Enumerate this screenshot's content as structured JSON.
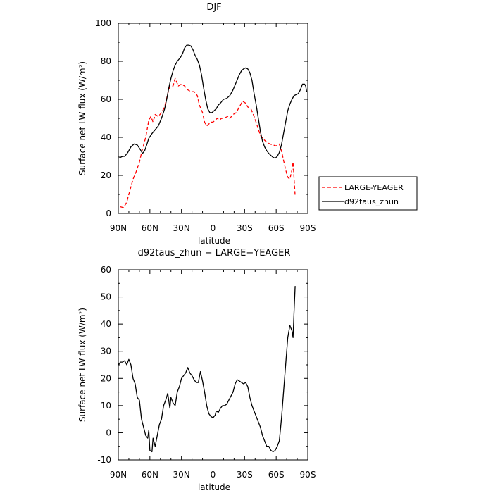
{
  "chart_data": [
    {
      "type": "line",
      "title": "DJF",
      "xlabel": "latitude",
      "ylabel": "Surface net LW flux (W/m²)",
      "xlim": [
        90,
        -90
      ],
      "ylim": [
        0,
        100
      ],
      "x_ticks": [
        "90N",
        "60N",
        "30N",
        "0",
        "30S",
        "60S",
        "90S"
      ],
      "y_ticks": [
        "0",
        "20",
        "40",
        "60",
        "80",
        "100"
      ],
      "legend_position": "right",
      "series": [
        {
          "name": "LARGE-YEAGER",
          "color": "#ff0000",
          "dash": "dashed",
          "points": [
            [
              88,
              3.5
            ],
            [
              85,
              3.0
            ],
            [
              82,
              6.0
            ],
            [
              79,
              12.0
            ],
            [
              76,
              18.0
            ],
            [
              73,
              22.0
            ],
            [
              70,
              27.0
            ],
            [
              67,
              34.0
            ],
            [
              64,
              40.0
            ],
            [
              61,
              49.0
            ],
            [
              59,
              51.0
            ],
            [
              57,
              48.0
            ],
            [
              55,
              52.0
            ],
            [
              52,
              51.0
            ],
            [
              49,
              53.0
            ],
            [
              46,
              56.0
            ],
            [
              43,
              63.0
            ],
            [
              41,
              67.0
            ],
            [
              38,
              67.0
            ],
            [
              36,
              71.0
            ],
            [
              33,
              67.0
            ],
            [
              30,
              68.0
            ],
            [
              27,
              67.0
            ],
            [
              24,
              65.0
            ],
            [
              21,
              64.0
            ],
            [
              18,
              64.0
            ],
            [
              15,
              62.0
            ],
            [
              13,
              57.0
            ],
            [
              10,
              53.0
            ],
            [
              8,
              48.0
            ],
            [
              6,
              46.0
            ],
            [
              4,
              47.0
            ],
            [
              2,
              48.0
            ],
            [
              0,
              48.0
            ],
            [
              -2,
              49.0
            ],
            [
              -4,
              50.0
            ],
            [
              -6,
              49.0
            ],
            [
              -8,
              50.0
            ],
            [
              -10,
              50.0
            ],
            [
              -12,
              50.5
            ],
            [
              -14,
              51.0
            ],
            [
              -16,
              50.0
            ],
            [
              -19,
              52.0
            ],
            [
              -22,
              53.0
            ],
            [
              -25,
              56.0
            ],
            [
              -28,
              59.0
            ],
            [
              -31,
              58.0
            ],
            [
              -33,
              56.0
            ],
            [
              -36,
              55.0
            ],
            [
              -39,
              51.0
            ],
            [
              -42,
              46.0
            ],
            [
              -45,
              41.0
            ],
            [
              -48,
              39.0
            ],
            [
              -51,
              37.5
            ],
            [
              -54,
              36.5
            ],
            [
              -57,
              36.0
            ],
            [
              -60,
              35.5
            ],
            [
              -63,
              36.5
            ],
            [
              -65,
              33.0
            ],
            [
              -67,
              28.0
            ],
            [
              -69,
              23.0
            ],
            [
              -71,
              19.0
            ],
            [
              -73,
              18.0
            ],
            [
              -75,
              23.0
            ],
            [
              -76,
              27.0
            ],
            [
              -77,
              18.0
            ],
            [
              -78,
              9.0
            ]
          ]
        },
        {
          "name": "d92taus_zhun",
          "color": "#000000",
          "dash": "solid",
          "points": [
            [
              90,
              29.0
            ],
            [
              88,
              29.5
            ],
            [
              86,
              30.0
            ],
            [
              84,
              30.0
            ],
            [
              81,
              32.0
            ],
            [
              78,
              35.0
            ],
            [
              75,
              36.5
            ],
            [
              72,
              36.0
            ],
            [
              69,
              33.5
            ],
            [
              67,
              31.5
            ],
            [
              65,
              33.0
            ],
            [
              63,
              36.0
            ],
            [
              61,
              39.5
            ],
            [
              58,
              42.0
            ],
            [
              55,
              44.0
            ],
            [
              52,
              46.0
            ],
            [
              49,
              50.0
            ],
            [
              46,
              55.0
            ],
            [
              44,
              60.0
            ],
            [
              42,
              66.0
            ],
            [
              40,
              71.0
            ],
            [
              38,
              75.0
            ],
            [
              36,
              78.0
            ],
            [
              34,
              80.0
            ],
            [
              31,
              82.0
            ],
            [
              29,
              84.0
            ],
            [
              27,
              87.0
            ],
            [
              25,
              88.5
            ],
            [
              23,
              88.5
            ],
            [
              21,
              88.0
            ],
            [
              19,
              86.0
            ],
            [
              17,
              83.0
            ],
            [
              15,
              81.0
            ],
            [
              13,
              78.0
            ],
            [
              11,
              73.0
            ],
            [
              9,
              66.0
            ],
            [
              7,
              60.0
            ],
            [
              5,
              55.0
            ],
            [
              3,
              53.0
            ],
            [
              1,
              53.0
            ],
            [
              -1,
              54.0
            ],
            [
              -3,
              55.0
            ],
            [
              -5,
              57.0
            ],
            [
              -7,
              58.0
            ],
            [
              -10,
              60.0
            ],
            [
              -13,
              60.5
            ],
            [
              -16,
              62.0
            ],
            [
              -19,
              65.0
            ],
            [
              -22,
              69.0
            ],
            [
              -25,
              73.0
            ],
            [
              -27,
              75.0
            ],
            [
              -29,
              76.0
            ],
            [
              -31,
              76.5
            ],
            [
              -33,
              76.0
            ],
            [
              -35,
              74.0
            ],
            [
              -37,
              70.0
            ],
            [
              -39,
              63.0
            ],
            [
              -41,
              57.0
            ],
            [
              -43,
              50.0
            ],
            [
              -45,
              43.0
            ],
            [
              -47,
              38.0
            ],
            [
              -49,
              35.0
            ],
            [
              -51,
              33.0
            ],
            [
              -53,
              31.5
            ],
            [
              -55,
              30.5
            ],
            [
              -57,
              29.5
            ],
            [
              -59,
              29.0
            ],
            [
              -61,
              30.0
            ],
            [
              -63,
              32.0
            ],
            [
              -65,
              36.0
            ],
            [
              -67,
              42.0
            ],
            [
              -69,
              48.0
            ],
            [
              -71,
              54.0
            ],
            [
              -73,
              57.5
            ],
            [
              -75,
              60.0
            ],
            [
              -77,
              62.0
            ],
            [
              -79,
              62.5
            ],
            [
              -81,
              63.0
            ],
            [
              -83,
              65.0
            ],
            [
              -85,
              68.0
            ],
            [
              -87,
              68.0
            ],
            [
              -88,
              67.0
            ],
            [
              -89,
              64.0
            ]
          ]
        }
      ]
    },
    {
      "type": "line",
      "title": "d92taus_zhun − LARGE−YEAGER",
      "xlabel": "latitude",
      "ylabel": "Surface net LW flux (W/m²)",
      "xlim": [
        90,
        -90
      ],
      "ylim": [
        -10,
        60
      ],
      "x_ticks": [
        "90N",
        "60N",
        "30N",
        "0",
        "30S",
        "60S",
        "90S"
      ],
      "y_ticks": [
        "-10",
        "0",
        "10",
        "20",
        "30",
        "40",
        "50",
        "60"
      ],
      "series": [
        {
          "color": "#000000",
          "dash": "solid",
          "points": [
            [
              90,
              25.0
            ],
            [
              88,
              26.0
            ],
            [
              86,
              26.0
            ],
            [
              84,
              26.5
            ],
            [
              82,
              25.0
            ],
            [
              80,
              27.0
            ],
            [
              78,
              25.0
            ],
            [
              76,
              20.0
            ],
            [
              74,
              18.0
            ],
            [
              72,
              13.0
            ],
            [
              70,
              12.0
            ],
            [
              68,
              5.0
            ],
            [
              66,
              2.0
            ],
            [
              64,
              -1.0
            ],
            [
              62,
              -2.0
            ],
            [
              61,
              1.0
            ],
            [
              60,
              -6.5
            ],
            [
              58,
              -7.0
            ],
            [
              57,
              -2.0
            ],
            [
              55,
              -5.0
            ],
            [
              53,
              -1.0
            ],
            [
              51,
              3.0
            ],
            [
              49,
              5.0
            ],
            [
              47,
              10.0
            ],
            [
              45,
              12.0
            ],
            [
              43,
              14.5
            ],
            [
              41,
              9.0
            ],
            [
              40,
              13.0
            ],
            [
              38,
              11.0
            ],
            [
              36,
              10.0
            ],
            [
              34,
              15.0
            ],
            [
              32,
              17.0
            ],
            [
              30,
              20.0
            ],
            [
              28,
              21.0
            ],
            [
              26,
              22.0
            ],
            [
              24,
              24.0
            ],
            [
              22,
              22.0
            ],
            [
              20,
              21.0
            ],
            [
              18,
              19.5
            ],
            [
              16,
              18.5
            ],
            [
              14,
              18.5
            ],
            [
              12,
              22.5
            ],
            [
              10,
              19.0
            ],
            [
              8,
              15.0
            ],
            [
              6,
              10.0
            ],
            [
              4,
              7.0
            ],
            [
              2,
              6.0
            ],
            [
              0,
              5.5
            ],
            [
              -2,
              6.5
            ],
            [
              -3,
              8.0
            ],
            [
              -5,
              7.5
            ],
            [
              -7,
              9.0
            ],
            [
              -9,
              10.0
            ],
            [
              -11,
              10.0
            ],
            [
              -13,
              10.5
            ],
            [
              -15,
              12.0
            ],
            [
              -17,
              13.5
            ],
            [
              -19,
              15.0
            ],
            [
              -21,
              18.0
            ],
            [
              -23,
              19.5
            ],
            [
              -25,
              19.0
            ],
            [
              -27,
              18.5
            ],
            [
              -29,
              18.0
            ],
            [
              -31,
              18.5
            ],
            [
              -33,
              17.0
            ],
            [
              -35,
              13.0
            ],
            [
              -37,
              10.0
            ],
            [
              -39,
              8.0
            ],
            [
              -41,
              6.0
            ],
            [
              -43,
              4.0
            ],
            [
              -45,
              2.0
            ],
            [
              -47,
              -1.0
            ],
            [
              -49,
              -3.0
            ],
            [
              -51,
              -5.0
            ],
            [
              -53,
              -5.0
            ],
            [
              -55,
              -6.5
            ],
            [
              -57,
              -7.0
            ],
            [
              -59,
              -6.5
            ],
            [
              -61,
              -5.0
            ],
            [
              -63,
              -3.0
            ],
            [
              -65,
              5.0
            ],
            [
              -67,
              15.0
            ],
            [
              -69,
              25.0
            ],
            [
              -71,
              35.0
            ],
            [
              -73,
              39.5
            ],
            [
              -75,
              37.5
            ],
            [
              -76,
              35.0
            ],
            [
              -77,
              45.0
            ],
            [
              -78,
              54.0
            ]
          ]
        }
      ]
    }
  ]
}
